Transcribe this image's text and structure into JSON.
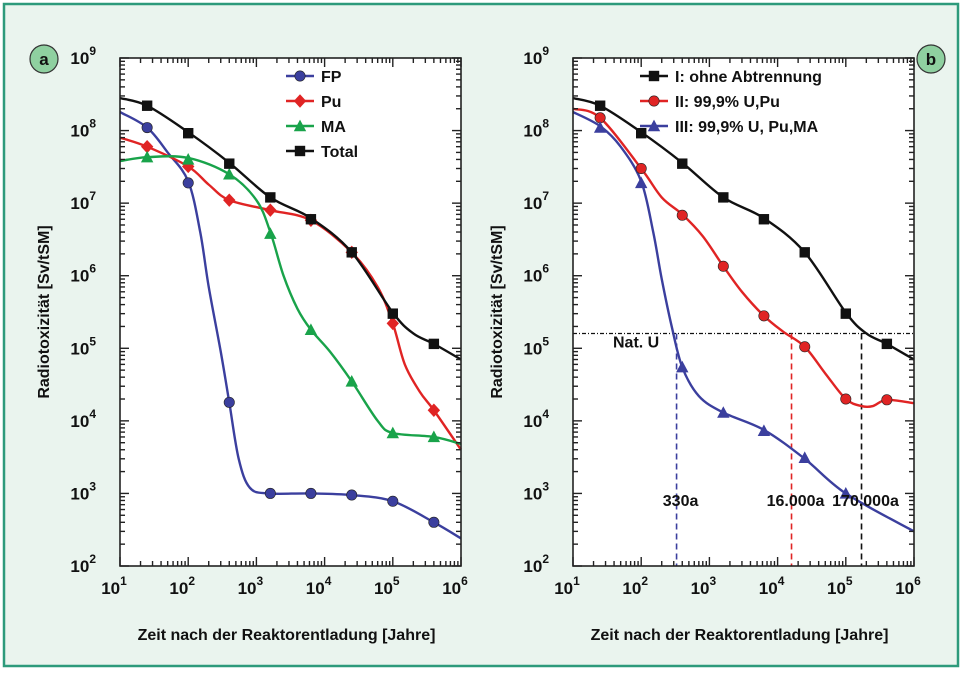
{
  "colors": {
    "border": "#2d9a7b",
    "panel_bg": "#eaf4ee",
    "badge_bg": "#8fd0a0",
    "fp": "#3b3f9e",
    "pu": "#e02424",
    "ma": "#19a34a",
    "total": "#111111"
  },
  "chart_data": [
    {
      "type": "line",
      "panel_label": "a",
      "xlabel": "Zeit nach der Reaktorentladung [Jahre]",
      "ylabel": "Radiotoxizität [Sv/tSM]",
      "x_scale": "log",
      "y_scale": "log",
      "xlim": [
        10,
        1000000
      ],
      "ylim": [
        100,
        1000000000
      ],
      "x_ticks": [
        {
          "base": "10",
          "exp": "1"
        },
        {
          "base": "10",
          "exp": "2"
        },
        {
          "base": "10",
          "exp": "3"
        },
        {
          "base": "10",
          "exp": "4"
        },
        {
          "base": "10",
          "exp": "5"
        },
        {
          "base": "10",
          "exp": "6"
        }
      ],
      "y_ticks": [
        {
          "base": "10",
          "exp": "2"
        },
        {
          "base": "10",
          "exp": "3"
        },
        {
          "base": "10",
          "exp": "4"
        },
        {
          "base": "10",
          "exp": "5"
        },
        {
          "base": "10",
          "exp": "6"
        },
        {
          "base": "10",
          "exp": "7"
        },
        {
          "base": "10",
          "exp": "8"
        },
        {
          "base": "10",
          "exp": "9"
        }
      ],
      "legend_position": "top-right",
      "series": [
        {
          "name": "FP",
          "color": "#3b3f9e",
          "marker": "circle",
          "curve": [
            [
              10,
              180000000.0
            ],
            [
              25,
              110000000.0
            ],
            [
              50,
              50000000.0
            ],
            [
              100,
              20000000.0
            ],
            [
              150,
              4000000.0
            ],
            [
              200,
              700000.0
            ],
            [
              300,
              90000.0
            ],
            [
              400,
              18000.0
            ],
            [
              550,
              3000.0
            ],
            [
              800,
              1200.0
            ],
            [
              1500,
              1000.0
            ],
            [
              6000,
              1000.0
            ],
            [
              25000,
              950.0
            ],
            [
              100000,
              780.0
            ],
            [
              400000,
              400.0
            ],
            [
              1000000,
              240.0
            ]
          ],
          "markers": [
            [
              25,
              110000000.0
            ],
            [
              100,
              19000000.0
            ],
            [
              400,
              18000.0
            ],
            [
              1600,
              1000.0
            ],
            [
              6300,
              1000.0
            ],
            [
              25000,
              950.0
            ],
            [
              100000,
              780.0
            ],
            [
              400000,
              400.0
            ]
          ]
        },
        {
          "name": "Pu",
          "color": "#e02424",
          "marker": "diamond",
          "curve": [
            [
              10,
              80000000.0
            ],
            [
              25,
              60000000.0
            ],
            [
              100,
              32000000.0
            ],
            [
              200,
              18000000.0
            ],
            [
              400,
              11000000.0
            ],
            [
              1600,
              8000000.0
            ],
            [
              6300,
              5800000.0
            ],
            [
              25000,
              2100000.0
            ],
            [
              60000,
              700000.0
            ],
            [
              100000,
              220000.0
            ],
            [
              150000,
              60000.0
            ],
            [
              250000,
              25000.0
            ],
            [
              400000,
              14000.0
            ],
            [
              1000000,
              4000.0
            ]
          ],
          "markers": [
            [
              25,
              60000000.0
            ],
            [
              100,
              32000000.0
            ],
            [
              400,
              11000000.0
            ],
            [
              1600,
              8000000.0
            ],
            [
              6300,
              5800000.0
            ],
            [
              25000,
              2100000.0
            ],
            [
              100000,
              220000.0
            ],
            [
              400000,
              14000.0
            ]
          ]
        },
        {
          "name": "MA",
          "color": "#19a34a",
          "marker": "triangle",
          "curve": [
            [
              10,
              38000000.0
            ],
            [
              25,
              43000000.0
            ],
            [
              100,
              42000000.0
            ],
            [
              400,
              25000000.0
            ],
            [
              1000,
              11000000.0
            ],
            [
              1600,
              4000000.0
            ],
            [
              2500,
              1000000.0
            ],
            [
              4000,
              350000.0
            ],
            [
              6300,
              180000.0
            ],
            [
              12000,
              90000.0
            ],
            [
              25000,
              35000.0
            ],
            [
              60000,
              10000.0
            ],
            [
              100000,
              6800.0
            ],
            [
              400000,
              6000.0
            ],
            [
              1000000,
              4800.0
            ]
          ],
          "markers": [
            [
              25,
              43000000.0
            ],
            [
              100,
              40000000.0
            ],
            [
              400,
              25000000.0
            ],
            [
              1600,
              3800000.0
            ],
            [
              6300,
              180000.0
            ],
            [
              25000,
              35000.0
            ],
            [
              100000,
              6800.0
            ],
            [
              400000,
              6000.0
            ]
          ]
        },
        {
          "name": "Total",
          "color": "#111111",
          "marker": "square",
          "curve": [
            [
              10,
              280000000.0
            ],
            [
              25,
              220000000.0
            ],
            [
              100,
              95000000.0
            ],
            [
              400,
              36000000.0
            ],
            [
              1600,
              12000000.0
            ],
            [
              6300,
              6200000.0
            ],
            [
              25000,
              2100000.0
            ],
            [
              100000,
              310000.0
            ],
            [
              200000,
              160000.0
            ],
            [
              400000,
              115000.0
            ],
            [
              1000000,
              70000.0
            ]
          ],
          "markers": [
            [
              25,
              220000000.0
            ],
            [
              100,
              92000000.0
            ],
            [
              400,
              35000000.0
            ],
            [
              1600,
              12000000.0
            ],
            [
              6300,
              6000000.0
            ],
            [
              25000,
              2100000.0
            ],
            [
              100000,
              300000.0
            ],
            [
              400000,
              115000.0
            ]
          ]
        }
      ]
    },
    {
      "type": "line",
      "panel_label": "b",
      "xlabel": "Zeit nach der Reaktorentladung [Jahre]",
      "ylabel": "Radiotoxizität [Sv/tSM]",
      "x_scale": "log",
      "y_scale": "log",
      "xlim": [
        10,
        1000000
      ],
      "ylim": [
        100,
        1000000000
      ],
      "x_ticks": [
        {
          "base": "10",
          "exp": "1"
        },
        {
          "base": "10",
          "exp": "2"
        },
        {
          "base": "10",
          "exp": "3"
        },
        {
          "base": "10",
          "exp": "4"
        },
        {
          "base": "10",
          "exp": "5"
        },
        {
          "base": "10",
          "exp": "6"
        }
      ],
      "y_ticks": [
        {
          "base": "10",
          "exp": "2"
        },
        {
          "base": "10",
          "exp": "3"
        },
        {
          "base": "10",
          "exp": "4"
        },
        {
          "base": "10",
          "exp": "5"
        },
        {
          "base": "10",
          "exp": "6"
        },
        {
          "base": "10",
          "exp": "7"
        },
        {
          "base": "10",
          "exp": "8"
        },
        {
          "base": "10",
          "exp": "9"
        }
      ],
      "legend_position": "top-right",
      "reference_line": {
        "label": "Nat. U",
        "y": 160000,
        "x_start": 10
      },
      "markers_annotations": [
        {
          "label": "330a",
          "x": 330,
          "color": "#3b3f9e"
        },
        {
          "label": "16.000a",
          "x": 16000,
          "color": "#e02424"
        },
        {
          "label": "170.000a",
          "x": 170000,
          "color": "#111111"
        }
      ],
      "series": [
        {
          "name": "I: ohne Abtrennung",
          "color": "#111111",
          "marker": "square",
          "curve": [
            [
              10,
              280000000.0
            ],
            [
              25,
              220000000.0
            ],
            [
              100,
              95000000.0
            ],
            [
              400,
              36000000.0
            ],
            [
              1600,
              12000000.0
            ],
            [
              6300,
              6200000.0
            ],
            [
              25000,
              2100000.0
            ],
            [
              100000,
              310000.0
            ],
            [
              200000,
              160000.0
            ],
            [
              400000,
              115000.0
            ],
            [
              1000000,
              70000.0
            ]
          ],
          "markers": [
            [
              25,
              220000000.0
            ],
            [
              100,
              92000000.0
            ],
            [
              400,
              35000000.0
            ],
            [
              1600,
              12000000.0
            ],
            [
              6300,
              6000000.0
            ],
            [
              25000,
              2100000.0
            ],
            [
              100000,
              300000.0
            ],
            [
              400000,
              115000.0
            ]
          ]
        },
        {
          "name": "II: 99,9% U,Pu",
          "color": "#e02424",
          "marker": "circle",
          "curve": [
            [
              10,
              200000000.0
            ],
            [
              25,
              150000000.0
            ],
            [
              100,
              30000000.0
            ],
            [
              200,
              12000000.0
            ],
            [
              400,
              7000000.0
            ],
            [
              800,
              3500000.0
            ],
            [
              1600,
              1350000.0
            ],
            [
              3000,
              600000.0
            ],
            [
              6300,
              280000.0
            ],
            [
              12000,
              170000.0
            ],
            [
              25000,
              105000.0
            ],
            [
              50000,
              45000.0
            ],
            [
              100000,
              20000.0
            ],
            [
              170000,
              16000.0
            ],
            [
              250000,
              16000.0
            ],
            [
              400000,
              19500.0
            ],
            [
              1000000,
              17500.0
            ]
          ],
          "markers": [
            [
              25,
              150000000.0
            ],
            [
              100,
              30000000.0
            ],
            [
              400,
              6800000.0
            ],
            [
              1600,
              1350000.0
            ],
            [
              6300,
              280000.0
            ],
            [
              25000,
              105000.0
            ],
            [
              100000,
              20000.0
            ],
            [
              400000,
              19500.0
            ]
          ]
        },
        {
          "name": "III: 99,9% U, Pu,MA",
          "color": "#3b3f9e",
          "marker": "triangle",
          "curve": [
            [
              10,
              180000000.0
            ],
            [
              25,
              115000000.0
            ],
            [
              50,
              60000000.0
            ],
            [
              100,
              20000000.0
            ],
            [
              150,
              4000000.0
            ],
            [
              200,
              900000.0
            ],
            [
              280,
              200000.0
            ],
            [
              400,
              55000.0
            ],
            [
              700,
              22000.0
            ],
            [
              1600,
              13000.0
            ],
            [
              6300,
              7500.0
            ],
            [
              25000,
              3000.0
            ],
            [
              100000,
              1000.0
            ],
            [
              1000000,
              300.0
            ]
          ],
          "markers": [
            [
              25,
              110000000.0
            ],
            [
              100,
              19000000.0
            ],
            [
              400,
              55000.0
            ],
            [
              1600,
              13000.0
            ],
            [
              6300,
              7300.0
            ],
            [
              25000,
              3100.0
            ],
            [
              100000,
              1000.0
            ]
          ]
        }
      ]
    }
  ]
}
